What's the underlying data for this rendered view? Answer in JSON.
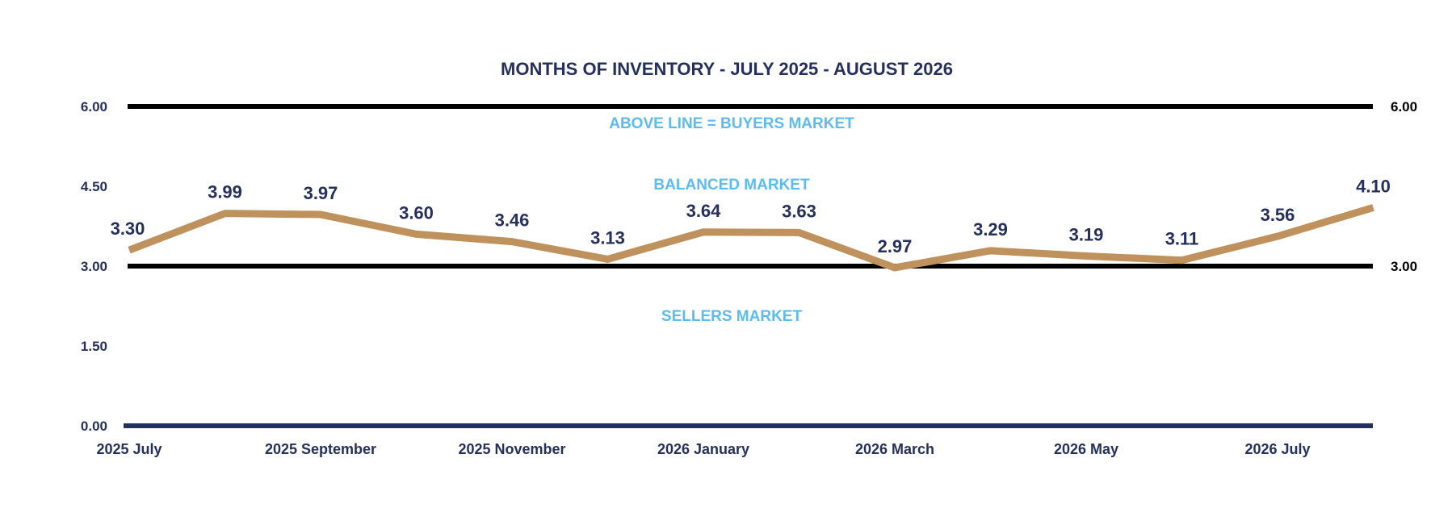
{
  "chart_data": {
    "type": "line",
    "title": "MONTHS OF INVENTORY - JULY 2025 - AUGUST 2026",
    "xlabel": "",
    "ylabel": "",
    "ylim": [
      0,
      6
    ],
    "yticks": [
      "0.00",
      "1.50",
      "3.00",
      "4.50",
      "6.00"
    ],
    "yticks_right": [
      "3.00",
      "6.00"
    ],
    "x_tick_labels": [
      "2025 July",
      "2025 September",
      "2025 November",
      "2026 January",
      "2026 March",
      "2026 May",
      "2026 July"
    ],
    "x": [
      "2025-07",
      "2025-08",
      "2025-09",
      "2025-10",
      "2025-11",
      "2025-12",
      "2026-01",
      "2026-02",
      "2026-03",
      "2026-04",
      "2026-05",
      "2026-06",
      "2026-07",
      "2026-08"
    ],
    "series": [
      {
        "values": [
          3.3,
          3.99,
          3.97,
          3.6,
          3.46,
          3.13,
          3.64,
          3.63,
          2.97,
          3.29,
          3.19,
          3.11,
          3.56,
          4.1
        ],
        "labels": [
          "3.30",
          "3.99",
          "3.97",
          "3.60",
          "3.46",
          "3.13",
          "3.64",
          "3.63",
          "2.97",
          "3.29",
          "3.19",
          "3.11",
          "3.56",
          "4.10"
        ],
        "color": "#bf915c"
      }
    ],
    "reference_lines": [
      {
        "value": 6.0,
        "color": "#000000"
      },
      {
        "value": 3.0,
        "color": "#000000"
      }
    ],
    "annotations": [
      "ABOVE LINE = BUYERS MARKET",
      "BALANCED MARKET",
      "SELLERS MARKET"
    ],
    "colors": {
      "text": "#25305c",
      "annotation": "#5bbcf2",
      "axis": "#25305c",
      "reference": "#000000",
      "series": "#bf915c"
    },
    "grid": false
  }
}
